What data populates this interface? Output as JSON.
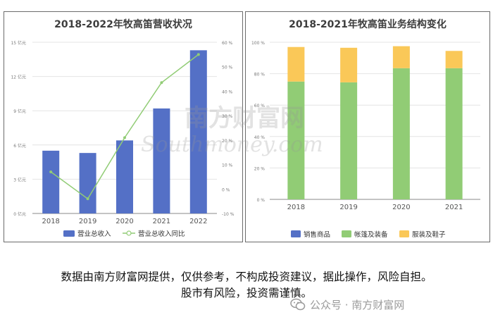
{
  "chart_data": [
    {
      "type": "bar+line",
      "title": "2018-2022年牧高笛营收状况",
      "categories": [
        "2018",
        "2019",
        "2020",
        "2021",
        "2022"
      ],
      "series": [
        {
          "name": "营业总收入",
          "type": "bar",
          "axis": "left",
          "color": "#5470c6",
          "values": [
            5.5,
            5.3,
            6.4,
            9.2,
            14.3
          ]
        },
        {
          "name": "营业总收入同比",
          "type": "line",
          "axis": "right",
          "color": "#91cc75",
          "values": [
            7,
            -4,
            21,
            43.5,
            55
          ]
        }
      ],
      "y_left": {
        "min": 0,
        "max": 15,
        "ticks": [
          "0 亿元",
          "3 亿元",
          "6 亿元",
          "9 亿元",
          "12 亿元",
          "15 亿元"
        ]
      },
      "y_right": {
        "min": -10,
        "max": 60,
        "ticks": [
          "-10 %",
          "0 %",
          "10 %",
          "20 %",
          "30 %",
          "40 %",
          "50 %",
          "60 %"
        ]
      },
      "legend_position": "bottom"
    },
    {
      "type": "stacked-bar",
      "title": "2018-2021年牧高笛业务结构变化",
      "categories": [
        "2018",
        "2019",
        "2020",
        "2021"
      ],
      "series": [
        {
          "name": "帐篷及装备",
          "color": "#91cc75",
          "values": [
            75,
            74.5,
            83.5,
            83.5
          ]
        },
        {
          "name": "服装及鞋子",
          "color": "#fac858",
          "values": [
            22,
            22,
            14,
            11
          ]
        }
      ],
      "legend": [
        {
          "name": "销售商品",
          "color": "#5470c6"
        },
        {
          "name": "帐篷及装备",
          "color": "#91cc75"
        },
        {
          "name": "服装及鞋子",
          "color": "#fac858"
        }
      ],
      "y": {
        "min": 0,
        "max": 100,
        "ticks": [
          "0 %",
          "20 %",
          "40 %",
          "60 %",
          "80 %",
          "100 %"
        ]
      },
      "legend_position": "bottom"
    }
  ],
  "watermark": {
    "brand_cn": "南方财富网",
    "brand_en": "Southmoney.com"
  },
  "disclaimer": {
    "line1": "数据由南方财富网提供，仅供参考，不构成投资建议，据此操作，风险自担。",
    "line2": "股市有风险，投资需谨慎。"
  },
  "footer": {
    "label": "公众号 · 南方财富网",
    "icon": "wechat-icon"
  }
}
